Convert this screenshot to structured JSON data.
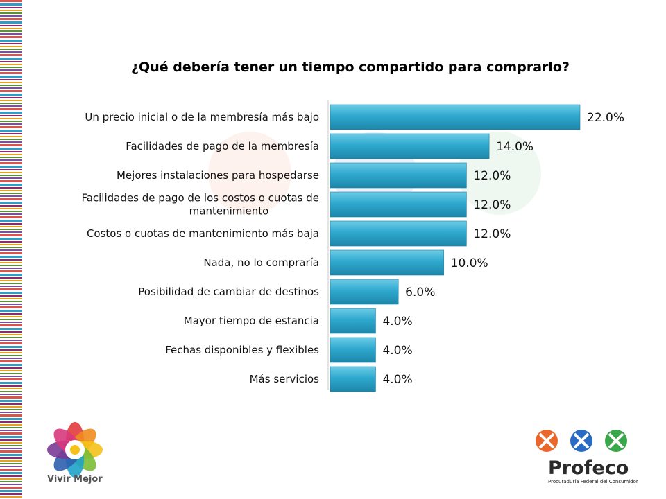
{
  "slide": {
    "title": "¿Qué debería tener un tiempo compartido para comprarlo?"
  },
  "chart_data": {
    "type": "bar",
    "orientation": "horizontal",
    "categories": [
      "Un precio inicial o de la membresía más bajo",
      "Facilidades de pago de la membresía",
      "Mejores instalaciones para hospedarse",
      "Facilidades de pago de los costos o cuotas de mantenimiento",
      "Costos o cuotas de mantenimiento más baja",
      "Nada, no lo compraría",
      "Posibilidad de cambiar de destinos",
      "Mayor tiempo de estancia",
      "Fechas disponibles y flexibles",
      "Más servicios"
    ],
    "category_lines": [
      [
        "Un precio inicial o de la membresía más bajo"
      ],
      [
        "Facilidades de pago de la membresía"
      ],
      [
        "Mejores instalaciones para hospedarse"
      ],
      [
        "Facilidades de pago de los costos o cuotas de",
        "mantenimiento"
      ],
      [
        "Costos o cuotas de mantenimiento más baja"
      ],
      [
        "Nada, no lo compraría"
      ],
      [
        "Posibilidad de cambiar de destinos"
      ],
      [
        "Mayor tiempo de estancia"
      ],
      [
        "Fechas disponibles y flexibles"
      ],
      [
        "Más servicios"
      ]
    ],
    "values": [
      22.0,
      14.0,
      12.0,
      12.0,
      12.0,
      10.0,
      6.0,
      4.0,
      4.0,
      4.0
    ],
    "value_labels": [
      "22.0%",
      "14.0%",
      "12.0%",
      "12.0%",
      "12.0%",
      "10.0%",
      "6.0%",
      "4.0%",
      "4.0%",
      "4.0%"
    ],
    "xlim": [
      0,
      22
    ],
    "grid": false,
    "legend": "none",
    "bar_color": "#2fa9cf"
  },
  "logos": {
    "vivir_mejor": "Vivir Mejor",
    "profeco": "Profeco",
    "profeco_subtitle": "Procuraduría Federal del Consumidor"
  }
}
